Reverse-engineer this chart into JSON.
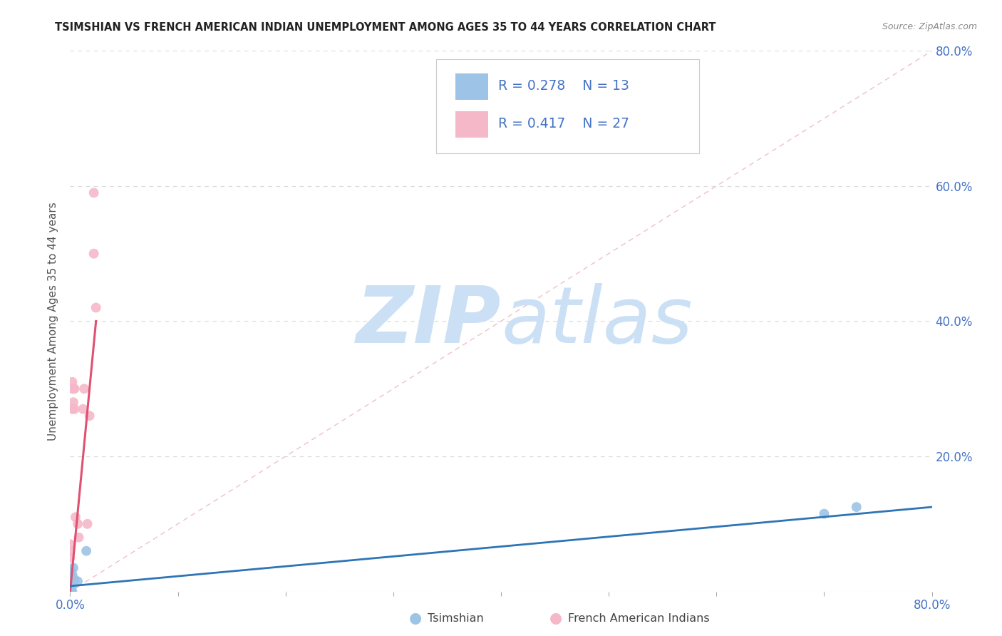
{
  "title": "TSIMSHIAN VS FRENCH AMERICAN INDIAN UNEMPLOYMENT AMONG AGES 35 TO 44 YEARS CORRELATION CHART",
  "source": "Source: ZipAtlas.com",
  "ylabel": "Unemployment Among Ages 35 to 44 years",
  "xlim": [
    0,
    0.8
  ],
  "ylim": [
    0,
    0.8
  ],
  "xticks": [
    0.0,
    0.1,
    0.2,
    0.3,
    0.4,
    0.5,
    0.6,
    0.7,
    0.8
  ],
  "xticklabels": [
    "0.0%",
    "",
    "",
    "",
    "",
    "",
    "",
    "",
    "80.0%"
  ],
  "yticks": [
    0.0,
    0.2,
    0.4,
    0.6,
    0.8
  ],
  "yticklabels": [
    "",
    "20.0%",
    "40.0%",
    "60.0%",
    "80.0%"
  ],
  "tick_color": "#4472c4",
  "grid_color": "#d9d9d9",
  "background_color": "#ffffff",
  "tsimshian_color": "#9dc3e6",
  "french_color": "#f4b8c8",
  "tsimshian_line_color": "#2e75b6",
  "french_line_color": "#e05070",
  "diag_line_color": "#f0c0c8",
  "legend_r1": "R = 0.278",
  "legend_n1": "N = 13",
  "legend_r2": "R = 0.417",
  "legend_n2": "N = 27",
  "legend_text_color": "#4472c4",
  "tsimshian_points_x": [
    0.0,
    0.0,
    0.001,
    0.001,
    0.002,
    0.002,
    0.003,
    0.003,
    0.004,
    0.007,
    0.015,
    0.7,
    0.73
  ],
  "tsimshian_points_y": [
    0.01,
    0.03,
    0.0,
    0.015,
    0.0,
    0.025,
    0.01,
    0.035,
    0.018,
    0.015,
    0.06,
    0.115,
    0.125
  ],
  "french_points_x": [
    0.0,
    0.0,
    0.0,
    0.0,
    0.0,
    0.0,
    0.0,
    0.001,
    0.001,
    0.001,
    0.002,
    0.002,
    0.002,
    0.003,
    0.003,
    0.004,
    0.004,
    0.005,
    0.007,
    0.008,
    0.012,
    0.013,
    0.016,
    0.018,
    0.022,
    0.022,
    0.024
  ],
  "french_points_y": [
    0.0,
    0.01,
    0.02,
    0.03,
    0.05,
    0.06,
    0.07,
    0.0,
    0.02,
    0.03,
    0.27,
    0.3,
    0.31,
    0.28,
    0.3,
    0.27,
    0.3,
    0.11,
    0.1,
    0.08,
    0.27,
    0.3,
    0.1,
    0.26,
    0.59,
    0.5,
    0.42
  ],
  "tsim_trendline_x": [
    0.0,
    0.8
  ],
  "tsim_trendline_y": [
    0.008,
    0.125
  ],
  "french_trendline_x": [
    0.0,
    0.024
  ],
  "french_trendline_y": [
    0.0,
    0.4
  ],
  "diag_line_x": [
    0.0,
    0.8
  ],
  "diag_line_y": [
    0.0,
    0.8
  ],
  "marker_size": 100,
  "watermark_zip": "ZIP",
  "watermark_atlas": "atlas",
  "watermark_color": "#cce0f5",
  "watermark_fontsize": 80
}
